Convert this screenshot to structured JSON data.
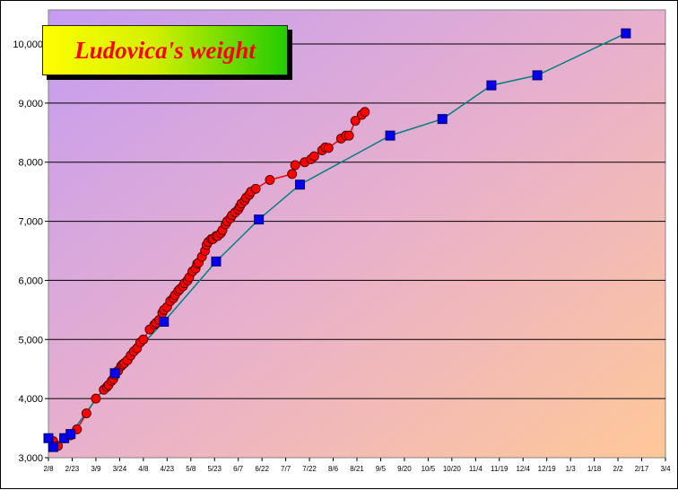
{
  "chart_data": {
    "type": "line",
    "title": "Ludovica's weight",
    "xlabel": "",
    "ylabel": "",
    "ylim": [
      3000,
      10000
    ],
    "y_ticks": [
      "3,000",
      "4,000",
      "5,000",
      "6,000",
      "7,000",
      "8,000",
      "9,000",
      "10,000"
    ],
    "x_ticks": [
      "2/8",
      "2/23",
      "3/9",
      "3/24",
      "4/8",
      "4/23",
      "5/8",
      "5/23",
      "6/7",
      "6/22",
      "7/7",
      "7/22",
      "8/6",
      "8/21",
      "9/5",
      "9/20",
      "10/5",
      "10/20",
      "11/4",
      "11/19",
      "12/4",
      "12/19",
      "1/3",
      "1/18",
      "2/2",
      "2/17",
      "3/4"
    ],
    "x_range_days": [
      0,
      390
    ],
    "grid": "horizontal",
    "background": "diagonal gradient, violet to peach",
    "series": [
      {
        "marker": "circle",
        "color": "#ff0000",
        "line_color": "#ff0000",
        "x": [
          3,
          6,
          10,
          14,
          18,
          24,
          30,
          35,
          37,
          38,
          40,
          41,
          42,
          44,
          46,
          47,
          48,
          50,
          52,
          54,
          56,
          58,
          60,
          64,
          67,
          68,
          70,
          72,
          73,
          75,
          77,
          79,
          80,
          82,
          83,
          85,
          86,
          88,
          89,
          91,
          93,
          94,
          95,
          97,
          99,
          100,
          101,
          103,
          104,
          106,
          107,
          109,
          110,
          112,
          113,
          115,
          116,
          118,
          120,
          121,
          122,
          124,
          125,
          127,
          128,
          131,
          140,
          154,
          156,
          162,
          166,
          168,
          173,
          175,
          177,
          185,
          188,
          190,
          194,
          198,
          200
        ],
        "y": [
          3280,
          3200,
          3330,
          3380,
          3480,
          3750,
          4000,
          4150,
          4200,
          4230,
          4300,
          4330,
          4400,
          4470,
          4550,
          4580,
          4600,
          4650,
          4730,
          4800,
          4850,
          4950,
          5000,
          5170,
          5250,
          5280,
          5330,
          5450,
          5500,
          5550,
          5650,
          5700,
          5750,
          5820,
          5850,
          5900,
          5950,
          6000,
          6050,
          6150,
          6200,
          6280,
          6300,
          6400,
          6500,
          6600,
          6650,
          6700,
          6700,
          6750,
          6750,
          6800,
          6850,
          6950,
          7000,
          7050,
          7100,
          7150,
          7200,
          7250,
          7300,
          7350,
          7400,
          7450,
          7500,
          7550,
          7700,
          7800,
          7950,
          8000,
          8050,
          8100,
          8200,
          8250,
          8240,
          8400,
          8450,
          8450,
          8700,
          8800,
          8850
        ]
      },
      {
        "marker": "square",
        "color": "#0000ee",
        "line_color": "#008080",
        "x": [
          0,
          3,
          10,
          14,
          42,
          73,
          106,
          133,
          159,
          216,
          249,
          280,
          309,
          365
        ],
        "y": [
          3330,
          3180,
          3330,
          3400,
          4430,
          5300,
          6320,
          7030,
          7620,
          8450,
          8730,
          9300,
          9470,
          10180
        ]
      }
    ]
  }
}
